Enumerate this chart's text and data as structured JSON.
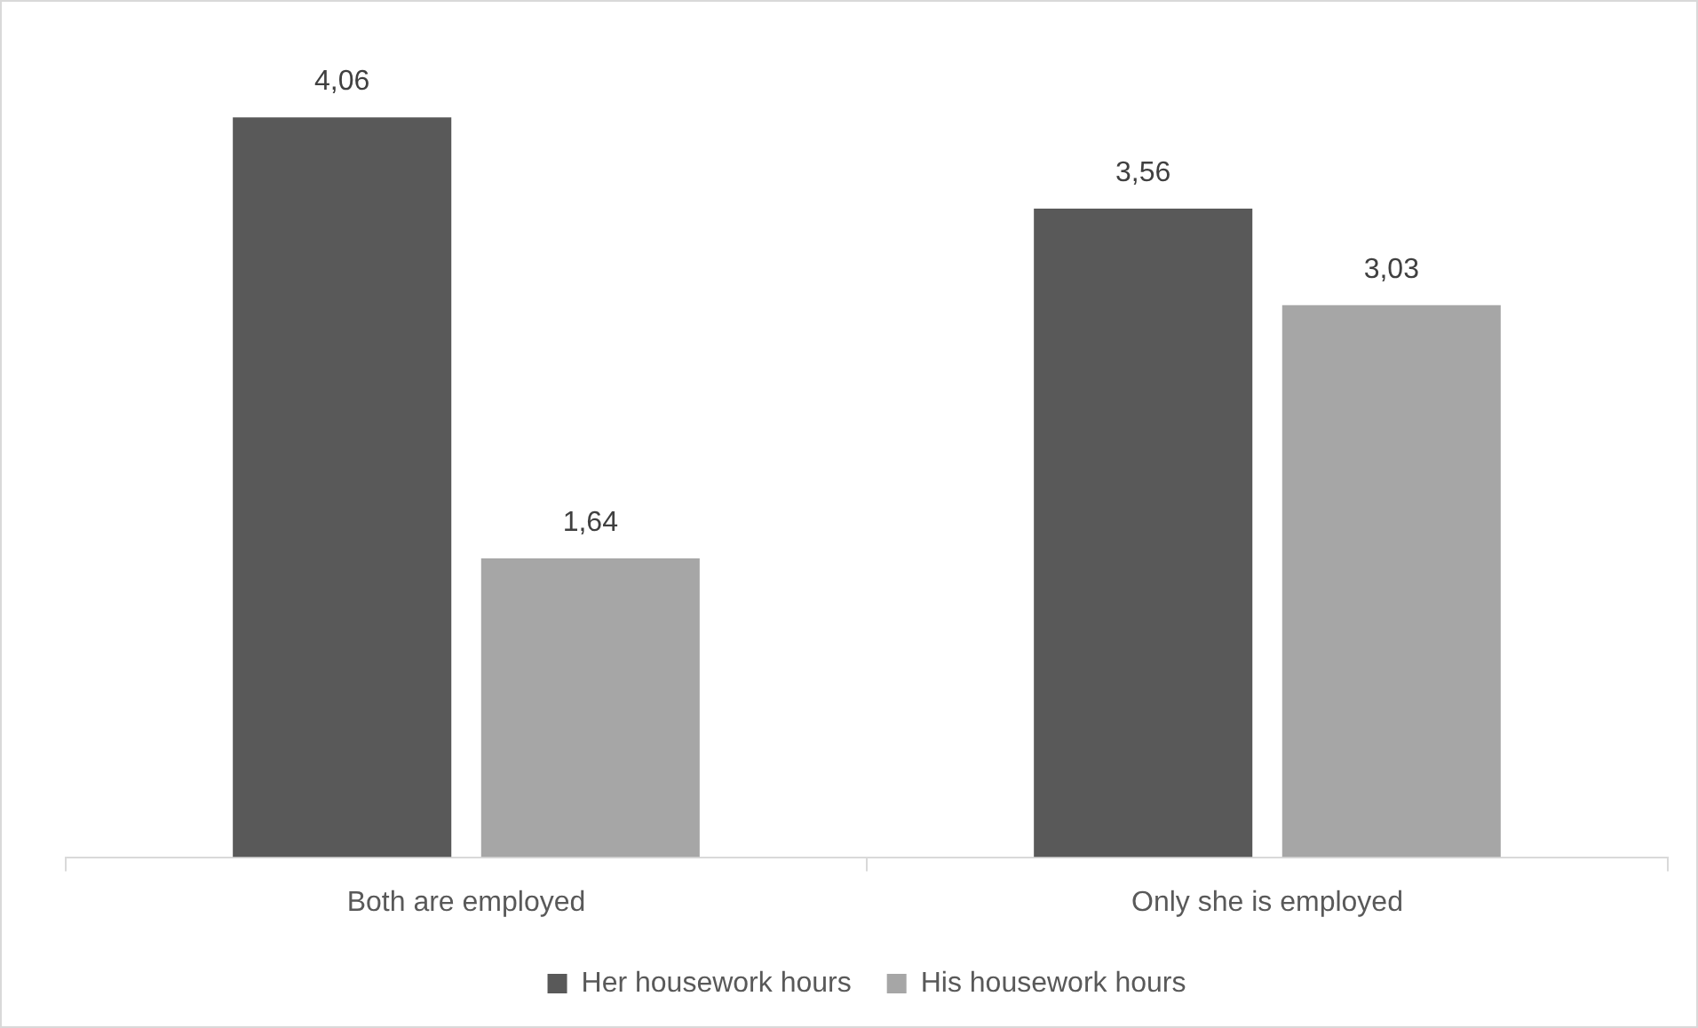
{
  "chart_data": {
    "type": "bar",
    "categories": [
      "Both are employed",
      "Only she is employed"
    ],
    "series": [
      {
        "name": "Her housework hours",
        "color": "#595959",
        "values": [
          4.06,
          3.56
        ],
        "value_labels": [
          "4,06",
          "3,56"
        ]
      },
      {
        "name": "His housework hours",
        "color": "#a6a6a6",
        "values": [
          1.64,
          3.03
        ],
        "value_labels": [
          "1,64",
          "3,03"
        ]
      }
    ],
    "tick_labels": "x",
    "legend": "bottom"
  }
}
